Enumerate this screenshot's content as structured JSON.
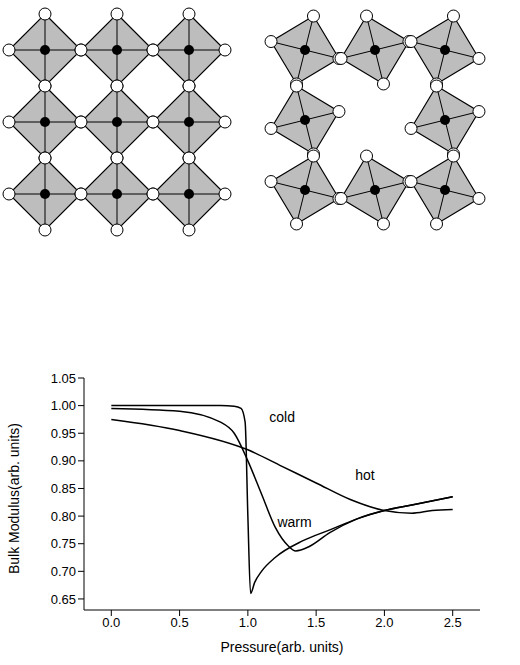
{
  "chart_data": {
    "type": "line",
    "x_label": "Pressure(arb. units)",
    "y_label": "Bulk Modulus(arb. units)",
    "xlim": [
      -0.2,
      2.7
    ],
    "ylim": [
      0.63,
      1.05
    ],
    "xticks": [
      {
        "value": 0,
        "label": "0.0"
      },
      0.5,
      {
        "value": 1,
        "label": "1.0"
      },
      1.5,
      {
        "value": 2,
        "label": "2.0"
      },
      2.5
    ],
    "yticks": [
      0.65,
      {
        "value": 0.7,
        "label": "0.70"
      },
      0.75,
      {
        "value": 0.8,
        "label": "0.80"
      },
      0.85,
      {
        "value": 0.9,
        "label": "0.90"
      },
      0.95,
      {
        "value": 1,
        "label": "1.00"
      },
      1.05
    ],
    "grid": false,
    "series": [
      {
        "name": "cold",
        "color": "#000000",
        "x": [
          0,
          0.5,
          0.8,
          0.9,
          0.95,
          0.98,
          1.0,
          1.02,
          1.05,
          1.1,
          1.2,
          1.4,
          1.6,
          1.8,
          2.0,
          2.2,
          2.5
        ],
        "values": [
          1.0,
          1.0,
          1.0,
          0.999,
          0.995,
          0.97,
          0.8,
          0.66,
          0.68,
          0.7,
          0.725,
          0.755,
          0.775,
          0.795,
          0.81,
          0.82,
          0.835
        ]
      },
      {
        "name": "warm",
        "color": "#000000",
        "x": [
          0,
          0.5,
          0.8,
          0.9,
          1.0,
          1.1,
          1.2,
          1.3,
          1.35,
          1.45,
          1.6,
          1.8,
          2.0,
          2.2,
          2.5
        ],
        "values": [
          0.995,
          0.99,
          0.97,
          0.95,
          0.9,
          0.84,
          0.78,
          0.745,
          0.737,
          0.745,
          0.77,
          0.795,
          0.81,
          0.82,
          0.835
        ]
      },
      {
        "name": "hot",
        "color": "#000000",
        "x": [
          0,
          0.5,
          1.0,
          1.25,
          1.5,
          1.75,
          2.0,
          2.2,
          2.35,
          2.5
        ],
        "values": [
          0.975,
          0.955,
          0.92,
          0.89,
          0.86,
          0.83,
          0.81,
          0.805,
          0.81,
          0.812
        ]
      }
    ],
    "annotations": [
      {
        "text": "cold",
        "x": 1.12,
        "y": 0.98
      },
      {
        "text": "hot",
        "x": 1.75,
        "y": 0.875
      },
      {
        "text": "warm",
        "x": 1.18,
        "y": 0.79
      }
    ]
  }
}
